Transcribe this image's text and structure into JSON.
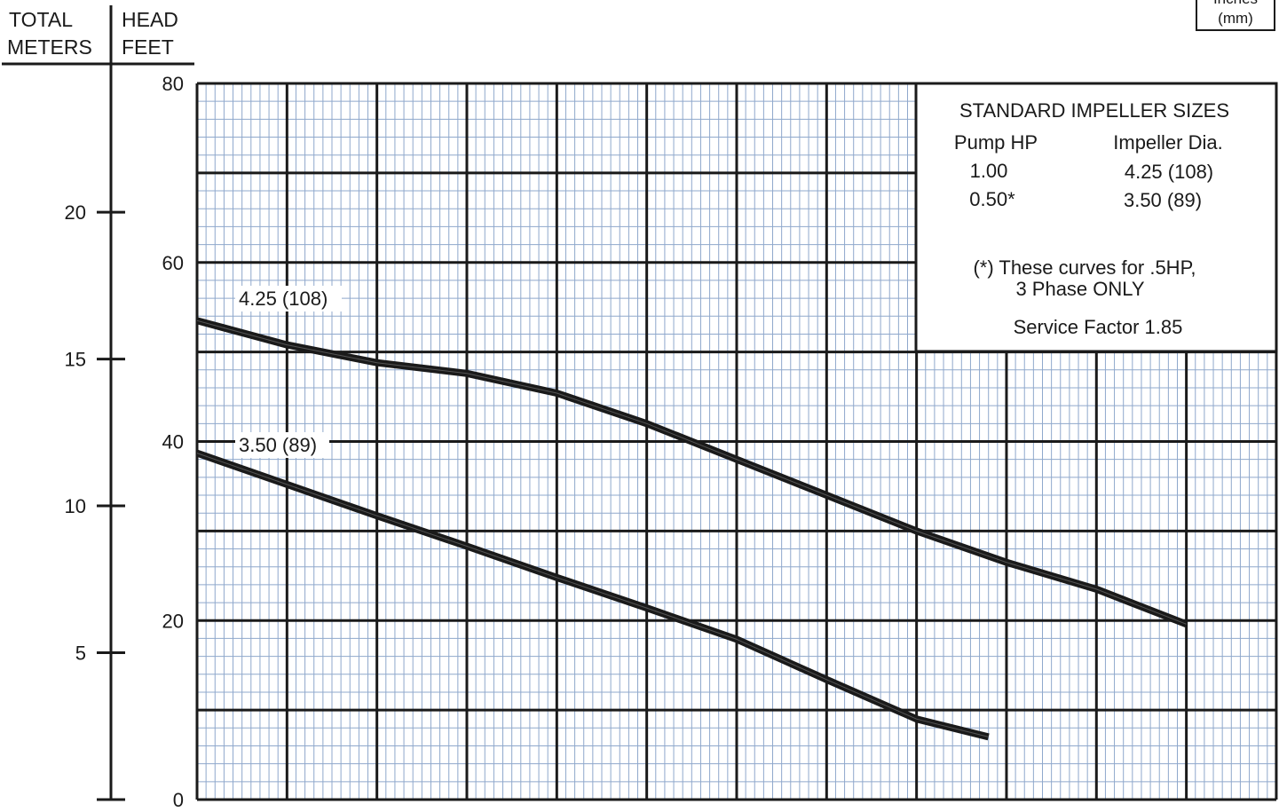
{
  "chart_data": {
    "type": "line",
    "title": "",
    "axis_header_left": {
      "line1": "TOTAL",
      "line2": "METERS"
    },
    "axis_header_right": {
      "line1": "HEAD",
      "line2": "FEET"
    },
    "corner_box": {
      "line1": "Inches",
      "line2": "(mm)"
    },
    "y_feet": {
      "range": [
        0,
        80
      ],
      "ticks": [
        0,
        20,
        40,
        60,
        80
      ]
    },
    "y_meters": {
      "range": [
        0,
        24.384
      ],
      "ticks": [
        5,
        10,
        15,
        20
      ]
    },
    "x": {
      "range": [
        0,
        12
      ],
      "ticks": []
    },
    "grid": true,
    "series": [
      {
        "name": "4.25 (108)",
        "x": [
          0,
          1,
          2,
          3,
          4,
          5,
          6,
          7,
          8,
          9,
          10,
          11
        ],
        "y": [
          53.5,
          50.8,
          48.8,
          47.6,
          45.4,
          42,
          38,
          34,
          30,
          26.5,
          23.5,
          19.6
        ]
      },
      {
        "name": "3.50 (89)",
        "x": [
          0,
          1,
          2,
          3,
          4,
          5,
          6,
          7,
          8,
          8.8
        ],
        "y": [
          38.7,
          35.2,
          31.7,
          28.3,
          24.8,
          21.4,
          17.9,
          13.4,
          9,
          7
        ]
      }
    ],
    "legend": {
      "title": "STANDARD IMPELLER SIZES",
      "col1_header": "Pump HP",
      "col2_header": "Impeller Dia.",
      "rows": [
        {
          "hp": "1.00",
          "dia": "4.25 (108)"
        },
        {
          "hp": "0.50*",
          "dia": "3.50 (89)"
        }
      ],
      "note_line1": "(*) These curves for .5HP,",
      "note_line2": "3 Phase ONLY",
      "service_factor": "Service Factor 1.85"
    },
    "colors": {
      "minor_grid": "#8fa8cc",
      "major_grid": "#1a1a1a",
      "curve": "#1a1a1a"
    }
  }
}
